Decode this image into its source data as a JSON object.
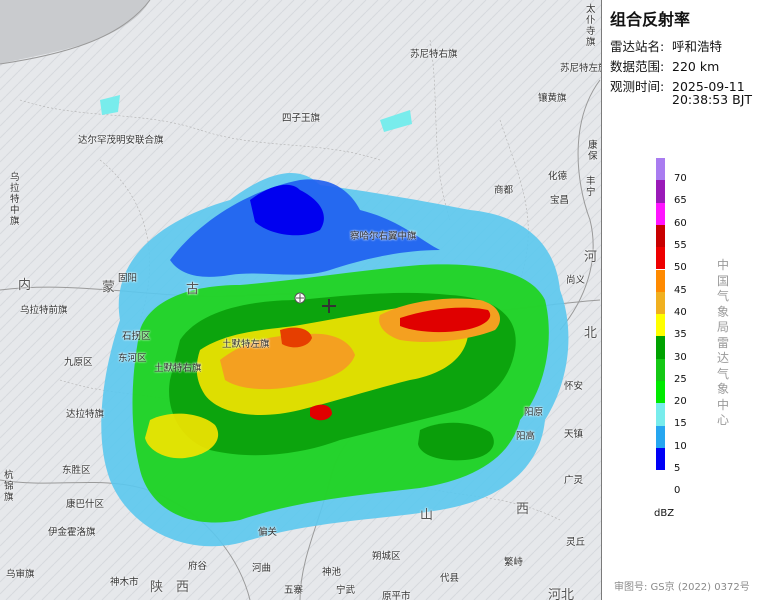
{
  "panel": {
    "title": "组合反射率",
    "station_key": "雷达站名:",
    "station_val": "呼和浩特",
    "range_key": "数据范围:",
    "range_val": "220 km",
    "time_key": "观测时间:",
    "time_date": "2025-09-11",
    "time_clock": "20:38:53 BJT",
    "org_vertical": "中国气象局雷达气象中心",
    "unit": "dBZ",
    "approval": "审图号: GS京 (2022) 0372号"
  },
  "legend": {
    "levels": [
      {
        "label": "70",
        "color": "#a97cf0"
      },
      {
        "label": "65",
        "color": "#9a1ab8"
      },
      {
        "label": "60",
        "color": "#ff14ff"
      },
      {
        "label": "55",
        "color": "#c80000"
      },
      {
        "label": "50",
        "color": "#ee0000"
      },
      {
        "label": "45",
        "color": "#ff8a00"
      },
      {
        "label": "40",
        "color": "#f0b020"
      },
      {
        "label": "35",
        "color": "#ffff00"
      },
      {
        "label": "30",
        "color": "#00a200"
      },
      {
        "label": "25",
        "color": "#14c814"
      },
      {
        "label": "20",
        "color": "#00ea00"
      },
      {
        "label": "15",
        "color": "#78ecec"
      },
      {
        "label": "10",
        "color": "#26a6f0"
      },
      {
        "label": "5",
        "color": "#0000f6"
      },
      {
        "label": "0",
        "color": ""
      }
    ]
  },
  "map_labels": [
    {
      "text": "苏尼特右旗"
    },
    {
      "text": "四子王旗"
    },
    {
      "text": "达尔罕茂明安联合旗"
    },
    {
      "text": "镶黄旗"
    },
    {
      "text": "乌拉特中旗"
    },
    {
      "text": "察哈尔右翼中旗"
    },
    {
      "text": "商都"
    },
    {
      "text": "化德"
    },
    {
      "text": "乌拉特前旗"
    },
    {
      "text": "固阳"
    },
    {
      "text": "石拐区"
    },
    {
      "text": "九原区"
    },
    {
      "text": "东河区"
    },
    {
      "text": "土默特右旗"
    },
    {
      "text": "土默特左旗"
    },
    {
      "text": "达拉特旗"
    },
    {
      "text": "东胜区"
    },
    {
      "text": "康巴什区"
    },
    {
      "text": "伊金霍洛旗"
    },
    {
      "text": "乌审旗"
    },
    {
      "text": "神木市"
    },
    {
      "text": "府谷"
    },
    {
      "text": "河曲"
    },
    {
      "text": "偏关"
    },
    {
      "text": "五寨"
    },
    {
      "text": "神池"
    },
    {
      "text": "朔城区"
    },
    {
      "text": "原平市"
    },
    {
      "text": "代县"
    },
    {
      "text": "繁峙"
    },
    {
      "text": "广灵"
    },
    {
      "text": "灵丘"
    },
    {
      "text": "阳原"
    },
    {
      "text": "尚义"
    },
    {
      "text": "怀安"
    },
    {
      "text": "丰宁"
    },
    {
      "text": "太仆寺旗"
    },
    {
      "text": "宝昌"
    },
    {
      "text": "康保"
    },
    {
      "text": "杭锦旗"
    },
    {
      "text": "宁武"
    },
    {
      "text": "阳高"
    },
    {
      "text": "天镇"
    },
    {
      "text": "苏尼特左旗"
    }
  ],
  "big_labels": [
    "内",
    "蒙",
    "古",
    "山",
    "西",
    "陕",
    "西",
    "河",
    "北",
    "河北"
  ]
}
